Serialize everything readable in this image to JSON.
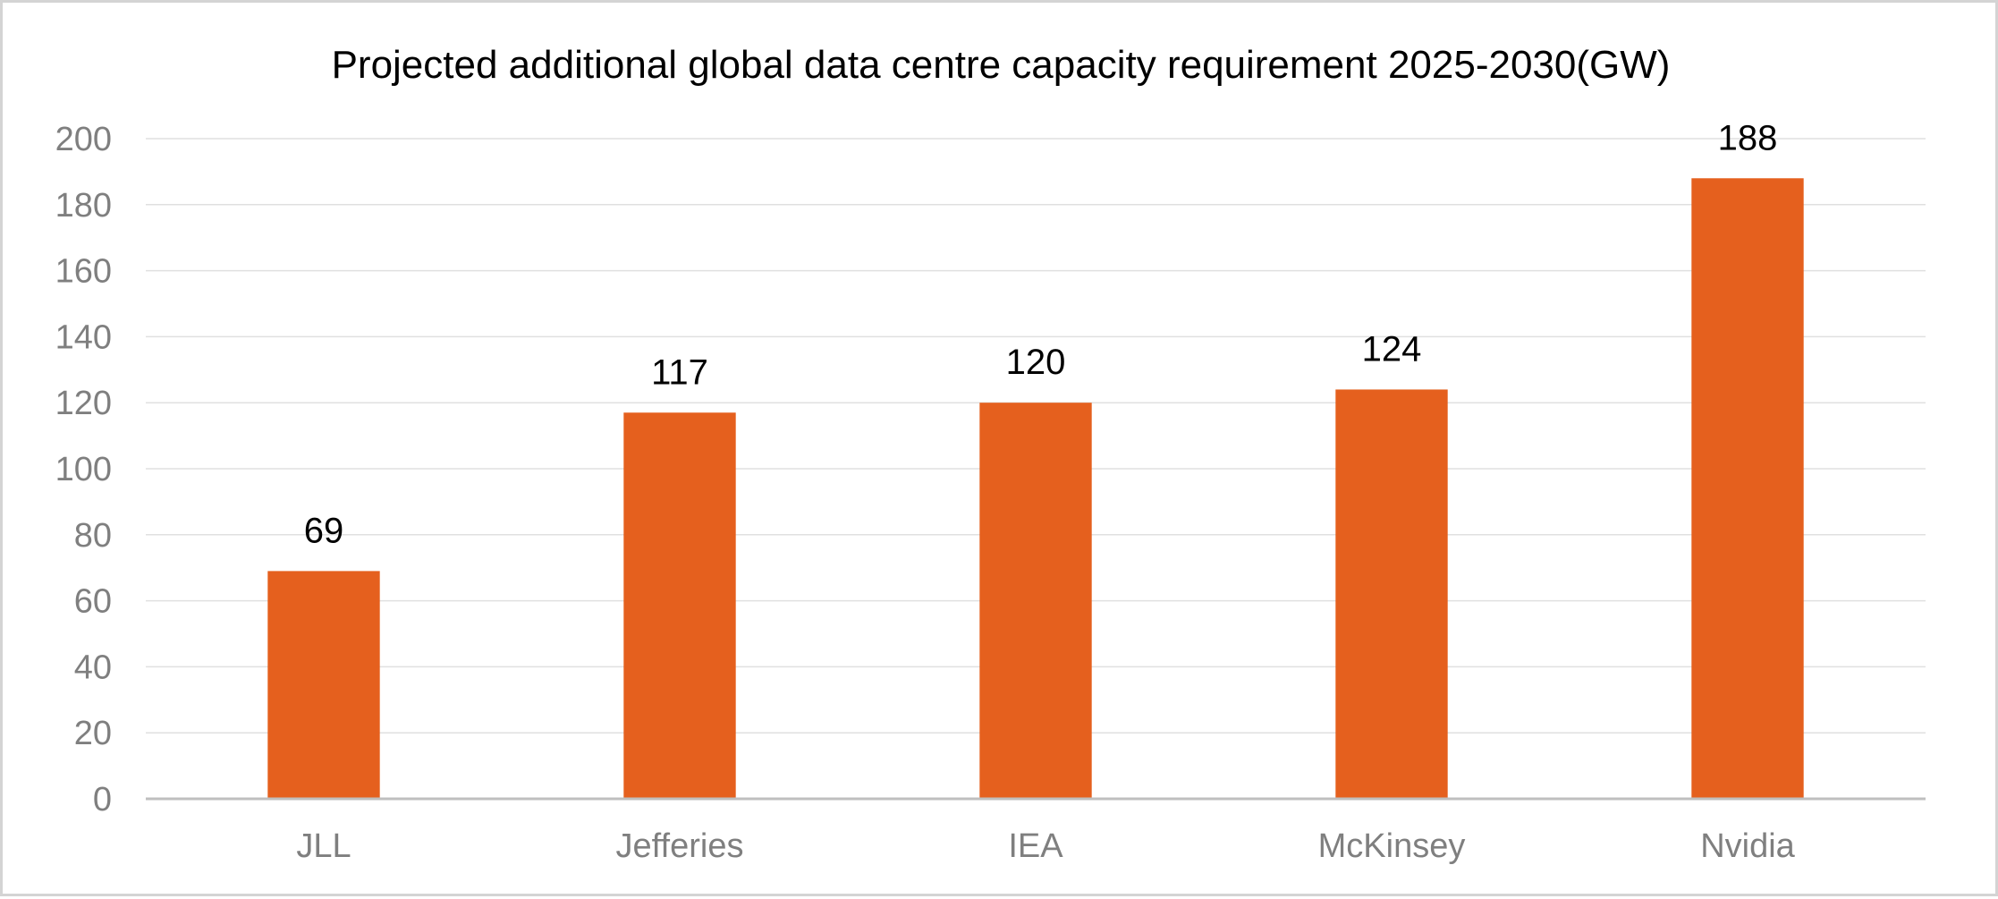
{
  "chart_data": {
    "type": "bar",
    "title": "Projected additional global data centre capacity requirement 2025-2030(GW)",
    "categories": [
      "JLL",
      "Jefferies",
      "IEA",
      "McKinsey",
      "Nvidia"
    ],
    "series": [
      {
        "values": [
          69,
          117,
          120,
          124,
          188
        ]
      }
    ],
    "ylim": [
      0,
      200
    ],
    "yticks": [
      "0",
      "20",
      "40",
      "60",
      "80",
      "100",
      "120",
      "140",
      "160",
      "180",
      "200"
    ],
    "grid": true,
    "legend": "none",
    "data_labels": true,
    "bar_color": "#e5601e"
  }
}
